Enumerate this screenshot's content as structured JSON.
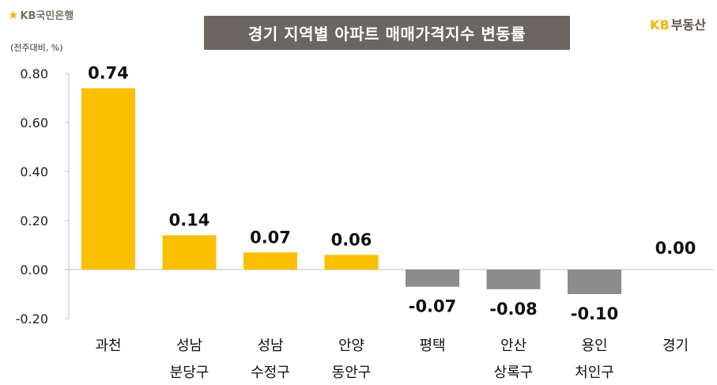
{
  "header": {
    "logo_left_mark": "★",
    "logo_left_text": "KB국민은행",
    "title": "경기 지역별 아파트 매매가격지수 변동률",
    "logo_right_kb": "KB",
    "logo_right_text": "부동산"
  },
  "chart_data": {
    "type": "bar",
    "title": "경기 지역별 아파트 매매가격지수 변동률",
    "ylabel": "(전주대비, %)",
    "ylim": [
      -0.2,
      0.8
    ],
    "yticks": [
      -0.2,
      0.0,
      0.2,
      0.4,
      0.6,
      0.8
    ],
    "ytick_labels": [
      "-0.20",
      "0.00",
      "0.20",
      "0.40",
      "0.60",
      "0.80"
    ],
    "categories": [
      [
        "과천"
      ],
      [
        "성남",
        "분당구"
      ],
      [
        "성남",
        "수정구"
      ],
      [
        "안양",
        "동안구"
      ],
      [
        "평택"
      ],
      [
        "안산",
        "상록구"
      ],
      [
        "용인",
        "처인구"
      ],
      [
        "경기"
      ]
    ],
    "values": [
      0.74,
      0.14,
      0.07,
      0.06,
      -0.07,
      -0.08,
      -0.1,
      0.0
    ],
    "value_labels": [
      "0.74",
      "0.14",
      "0.07",
      "0.06",
      "-0.07",
      "-0.08",
      "-0.10",
      "0.00"
    ],
    "colors": {
      "positive": "#fbbf00",
      "negative": "#8c8c8c"
    },
    "grid": false,
    "legend": "none"
  }
}
